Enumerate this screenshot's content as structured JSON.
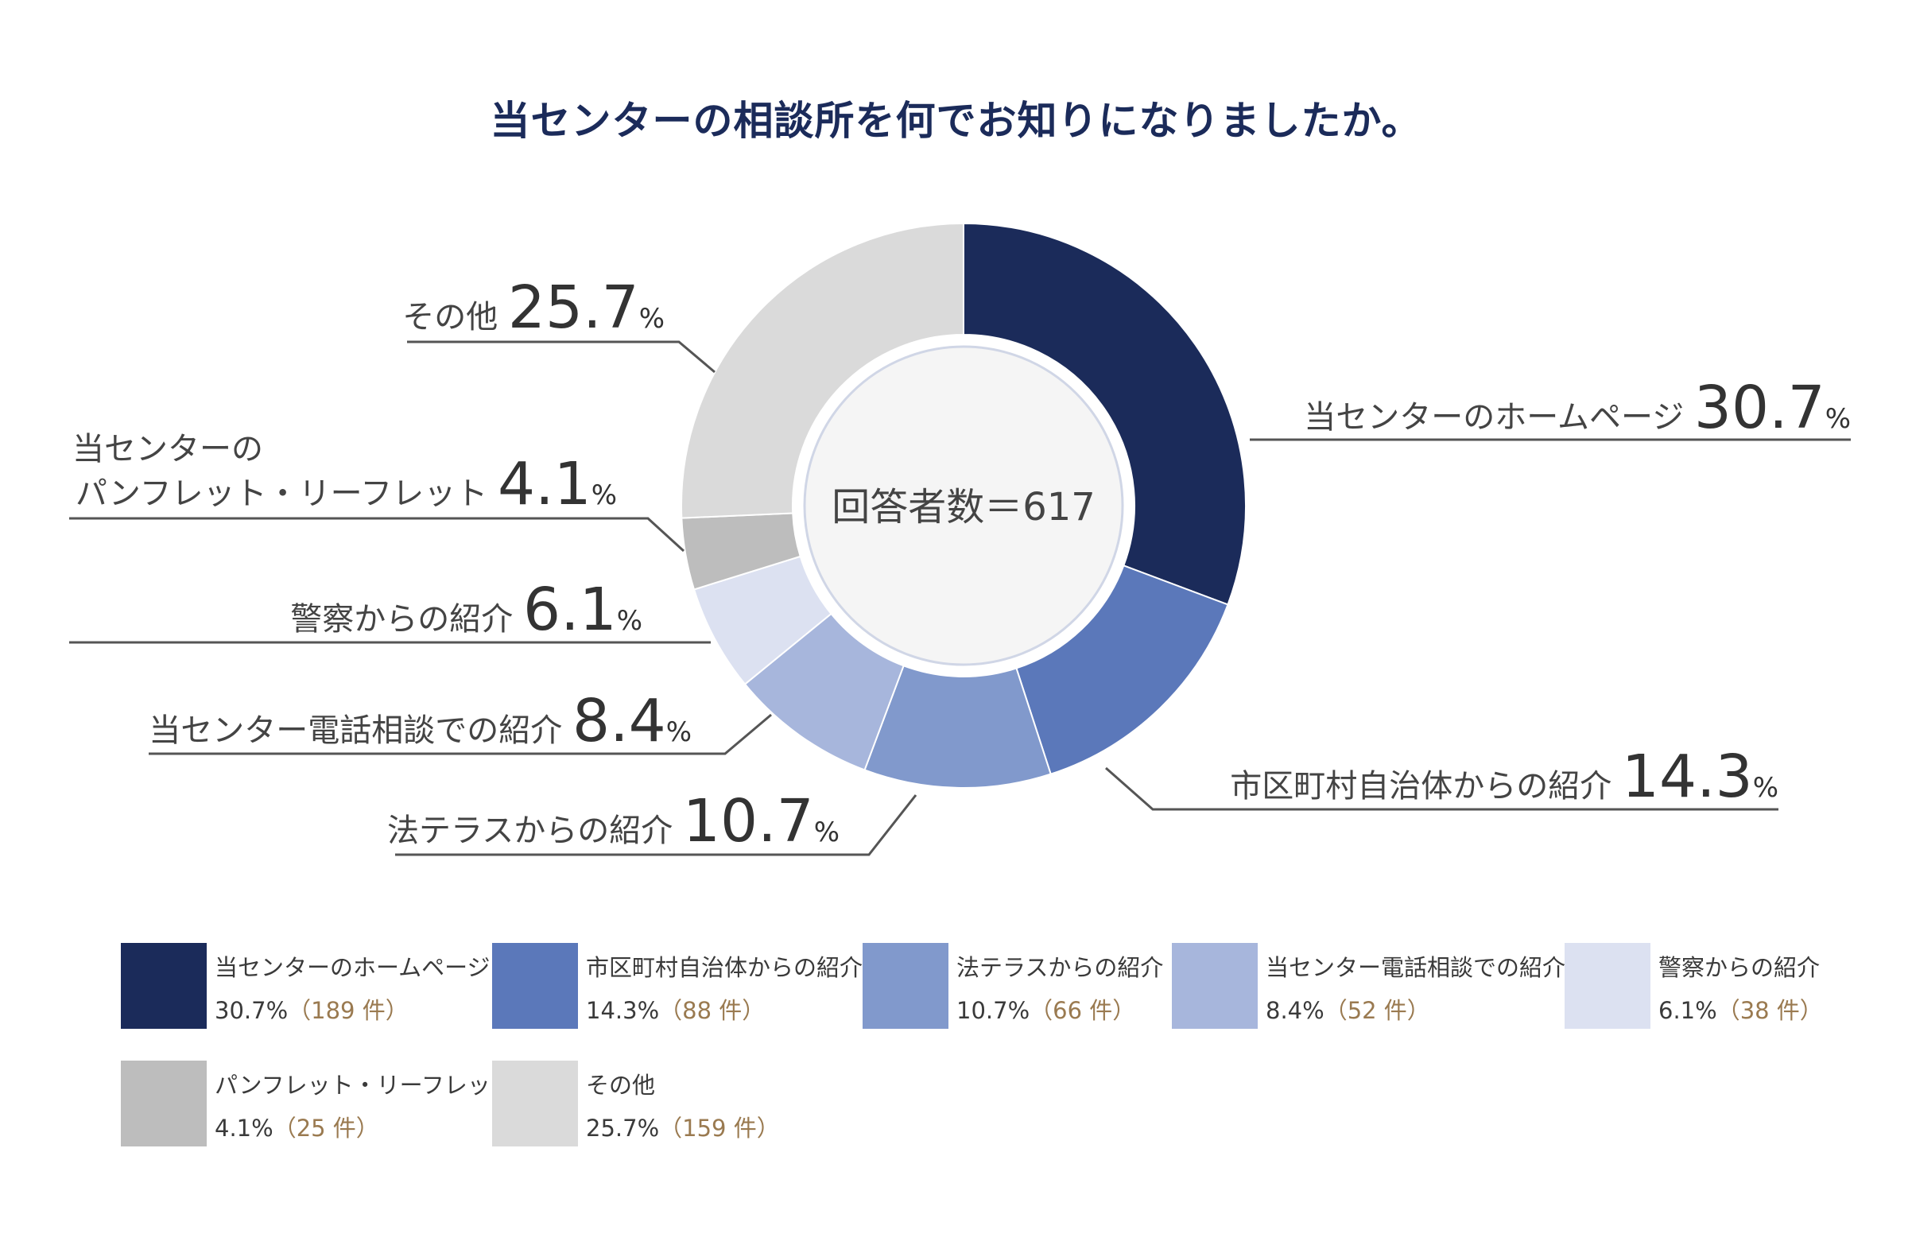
{
  "title": "当センターの相談所を何でお知りになりましたか。",
  "center_label": "回答者数＝617",
  "chart_data": {
    "type": "pie",
    "title": "当センターの相談所を何でお知りになりましたか。",
    "total_respondents": 617,
    "categories": [
      "当センターのホームページ",
      "市区町村自治体からの紹介",
      "法テラスからの紹介",
      "当センター電話相談での紹介",
      "警察からの紹介",
      "パンフレット・リーフレット",
      "その他"
    ],
    "values": [
      30.7,
      14.3,
      10.7,
      8.4,
      6.1,
      4.1,
      25.7
    ],
    "counts": [
      189,
      88,
      66,
      52,
      38,
      25,
      159
    ],
    "colors": [
      "#1b2b5a",
      "#5b78ba",
      "#8199cc",
      "#a7b6dc",
      "#dce1f1",
      "#bdbdbd",
      "#dadada"
    ],
    "callouts": [
      {
        "label": "当センターのホームページ",
        "value": "30.7",
        "unit": "%"
      },
      {
        "label": "市区町村自治体からの紹介",
        "value": "14.3",
        "unit": "%"
      },
      {
        "label": "法テラスからの紹介",
        "value": "10.7",
        "unit": "%"
      },
      {
        "label": "当センター電話相談での紹介",
        "value": "8.4",
        "unit": "%"
      },
      {
        "label": "警察からの紹介",
        "value": "6.1",
        "unit": "%"
      },
      {
        "label_lines": [
          "当センターの",
          "パンフレット・リーフレット"
        ],
        "value": "4.1",
        "unit": "%"
      },
      {
        "label": "その他",
        "value": "25.7",
        "unit": "%"
      }
    ],
    "legend": [
      {
        "label": "当センターのホームページ",
        "value": "30.7%",
        "count": "（189 件）"
      },
      {
        "label": "市区町村自治体からの紹介",
        "value": "14.3%",
        "count": "（88 件）"
      },
      {
        "label": "法テラスからの紹介",
        "value": "10.7%",
        "count": "（66 件）"
      },
      {
        "label": "当センター電話相談での紹介",
        "value": "8.4%",
        "count": "（52 件）"
      },
      {
        "label": "警察からの紹介",
        "value": "6.1%",
        "count": "（38 件）"
      },
      {
        "label": "パンフレット・リーフレット",
        "value": "4.1%",
        "count": "（25 件）"
      },
      {
        "label": "その他",
        "value": "25.7%",
        "count": "（159 件）"
      }
    ]
  }
}
